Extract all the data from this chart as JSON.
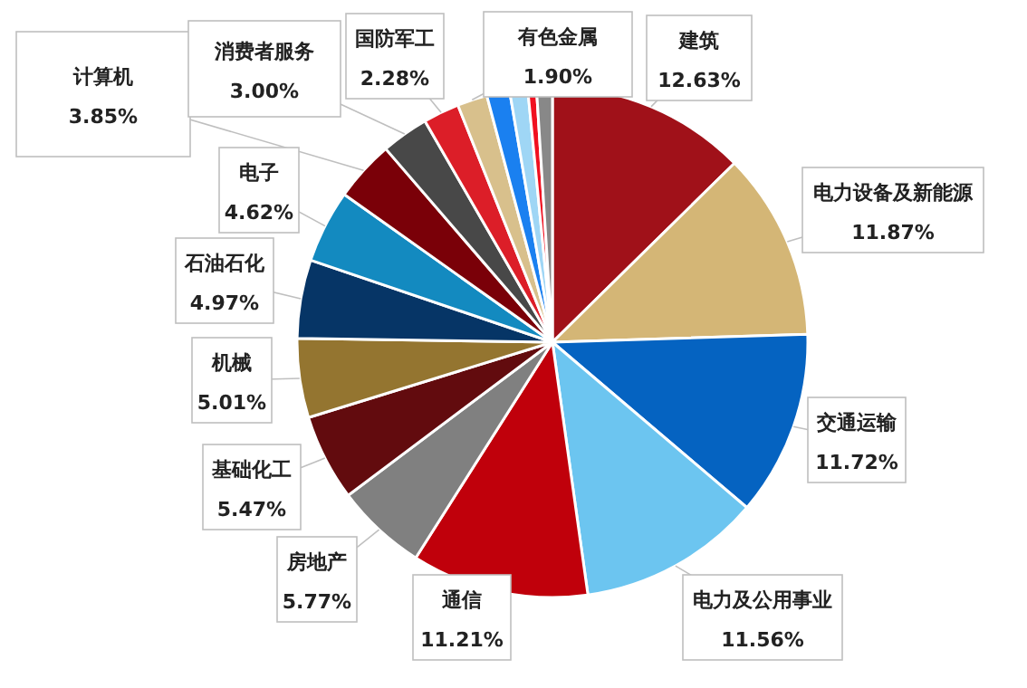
{
  "chart_data": {
    "type": "pie",
    "categories": [
      "建筑",
      "电力设备及新能源",
      "交通运输",
      "电力及公用事业",
      "通信",
      "房地产",
      "基础化工",
      "机械",
      "石油石化",
      "电子",
      "计算机",
      "消费者服务",
      "国防军工",
      "有色金属",
      null,
      null,
      null,
      null
    ],
    "values": [
      12.63,
      11.87,
      11.72,
      11.56,
      11.21,
      5.77,
      5.47,
      5.01,
      4.97,
      4.62,
      3.85,
      3.0,
      2.28,
      1.9,
      1.45,
      1.14,
      0.55,
      1.0
    ],
    "value_labels": [
      "12.63%",
      "11.87%",
      "11.72%",
      "11.56%",
      "11.21%",
      "5.77%",
      "5.47%",
      "5.01%",
      "4.97%",
      "4.62%",
      "3.85%",
      "3.00%",
      "2.28%",
      "1.90%",
      null,
      null,
      null,
      null
    ],
    "colors": [
      "#a01119",
      "#d4b676",
      "#0563c1",
      "#6cc5f0",
      "#c0000b",
      "#808080",
      "#620b0e",
      "#947530",
      "#063566",
      "#138ac0",
      "#7a0008",
      "#484848",
      "#dc1e28",
      "#d8c08c",
      "#1a80f0",
      "#9fd6f5",
      "#f01020",
      "#888888"
    ]
  }
}
